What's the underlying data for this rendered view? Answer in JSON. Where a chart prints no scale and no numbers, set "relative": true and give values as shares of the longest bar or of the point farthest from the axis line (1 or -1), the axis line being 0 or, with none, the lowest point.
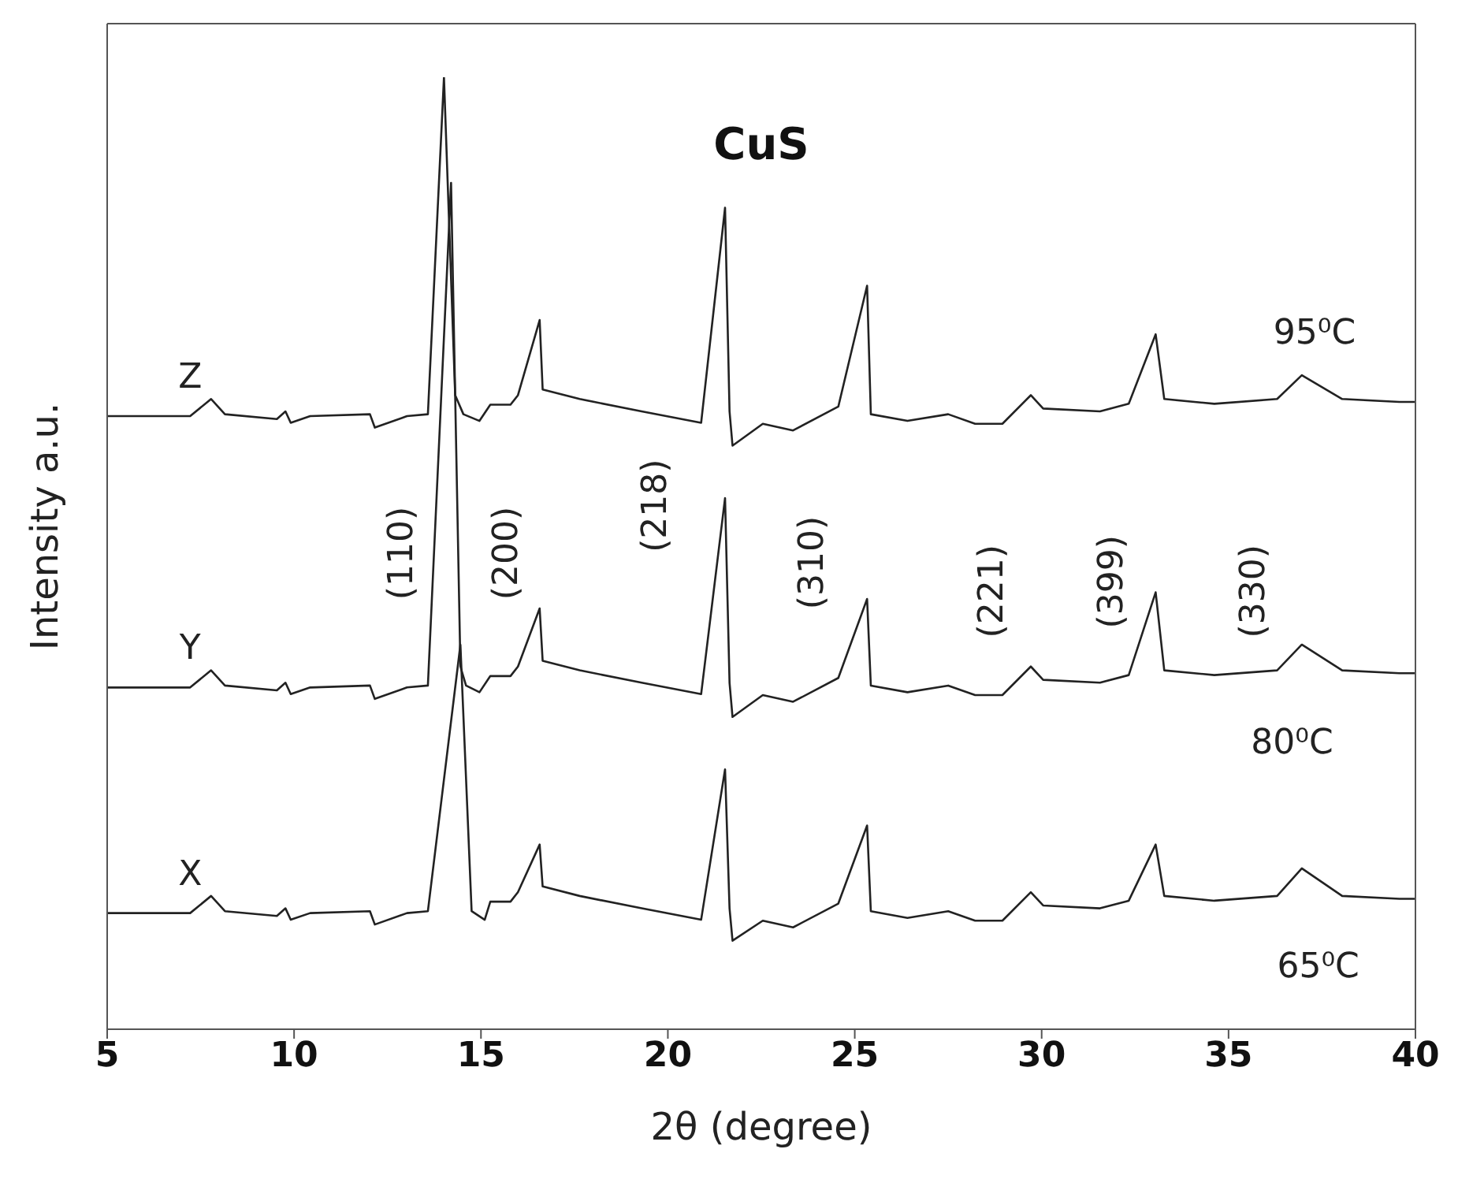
{
  "chart_data": {
    "type": "line",
    "title": "CuS",
    "xlabel": "2θ (degree)",
    "ylabel": "Intensity a.u.",
    "relative": true,
    "xlim": [
      5,
      40
    ],
    "xticks": [
      5,
      10,
      15,
      20,
      25,
      30,
      35,
      40
    ],
    "marker": "none",
    "series": [
      {
        "name": "Z",
        "color": "#222222",
        "x": [
          5.0,
          7.22,
          7.78,
          8.15,
          9.54,
          9.77,
          9.91,
          10.43,
          12.03,
          12.16,
          13.02,
          13.58,
          14.01,
          14.31,
          14.53,
          14.96,
          15.25,
          15.79,
          15.99,
          16.57,
          16.65,
          17.64,
          19.3,
          20.89,
          21.53,
          21.65,
          21.73,
          22.54,
          23.35,
          24.56,
          25.33,
          25.43,
          26.41,
          27.5,
          28.22,
          28.95,
          29.71,
          30.04,
          31.56,
          32.33,
          33.05,
          33.28,
          34.62,
          36.3,
          36.96,
          38.04,
          39.57,
          40.0
        ],
        "values": [
          0.644,
          0.644,
          0.662,
          0.646,
          0.641,
          0.649,
          0.637,
          0.644,
          0.646,
          0.632,
          0.644,
          0.646,
          1.0,
          0.666,
          0.646,
          0.639,
          0.656,
          0.656,
          0.666,
          0.745,
          0.672,
          0.662,
          0.649,
          0.637,
          0.863,
          0.649,
          0.613,
          0.636,
          0.629,
          0.654,
          0.781,
          0.646,
          0.639,
          0.646,
          0.636,
          0.636,
          0.666,
          0.652,
          0.649,
          0.657,
          0.73,
          0.662,
          0.657,
          0.662,
          0.687,
          0.662,
          0.659,
          0.659
        ]
      },
      {
        "name": "Y",
        "color": "#222222",
        "x": [
          5.0,
          7.22,
          7.78,
          8.15,
          9.54,
          9.77,
          9.91,
          10.43,
          12.03,
          12.16,
          13.02,
          13.58,
          14.2,
          14.45,
          14.6,
          14.96,
          15.25,
          15.79,
          15.99,
          16.57,
          16.65,
          17.64,
          19.3,
          20.89,
          21.53,
          21.65,
          21.73,
          22.54,
          23.35,
          24.56,
          25.33,
          25.43,
          26.41,
          27.5,
          28.22,
          28.95,
          29.71,
          30.04,
          31.56,
          32.33,
          33.05,
          33.28,
          34.62,
          36.3,
          36.96,
          38.04,
          39.57,
          40.0
        ],
        "values": [
          0.359,
          0.359,
          0.377,
          0.361,
          0.356,
          0.364,
          0.352,
          0.359,
          0.361,
          0.347,
          0.359,
          0.361,
          0.889,
          0.381,
          0.361,
          0.354,
          0.371,
          0.371,
          0.381,
          0.442,
          0.387,
          0.377,
          0.364,
          0.352,
          0.558,
          0.364,
          0.328,
          0.351,
          0.344,
          0.369,
          0.452,
          0.361,
          0.354,
          0.361,
          0.351,
          0.351,
          0.381,
          0.367,
          0.364,
          0.372,
          0.459,
          0.377,
          0.372,
          0.377,
          0.404,
          0.377,
          0.374,
          0.374
        ]
      },
      {
        "name": "X",
        "color": "#222222",
        "x": [
          5.0,
          7.22,
          7.78,
          8.15,
          9.54,
          9.77,
          9.91,
          10.43,
          12.03,
          12.16,
          13.02,
          13.58,
          14.45,
          14.75,
          15.1,
          15.25,
          15.79,
          15.99,
          16.57,
          16.65,
          17.64,
          19.3,
          20.89,
          21.53,
          21.65,
          21.73,
          22.54,
          23.35,
          24.56,
          25.33,
          25.43,
          26.41,
          27.5,
          28.22,
          28.95,
          29.71,
          30.04,
          31.56,
          32.33,
          33.05,
          33.28,
          34.62,
          36.3,
          36.96,
          38.04,
          39.57,
          40.0
        ],
        "values": [
          0.122,
          0.122,
          0.14,
          0.124,
          0.119,
          0.127,
          0.115,
          0.122,
          0.124,
          0.11,
          0.122,
          0.124,
          0.404,
          0.124,
          0.115,
          0.134,
          0.134,
          0.144,
          0.194,
          0.15,
          0.14,
          0.127,
          0.115,
          0.273,
          0.127,
          0.093,
          0.114,
          0.107,
          0.132,
          0.214,
          0.124,
          0.117,
          0.124,
          0.114,
          0.114,
          0.144,
          0.13,
          0.127,
          0.135,
          0.194,
          0.14,
          0.135,
          0.14,
          0.169,
          0.14,
          0.137,
          0.137
        ]
      }
    ],
    "annotations": [
      "95⁰C",
      "80⁰C",
      "65⁰C",
      "(110)",
      "(200)",
      "(218)",
      "(310)",
      "(221)",
      "(399)",
      "(330)"
    ]
  }
}
